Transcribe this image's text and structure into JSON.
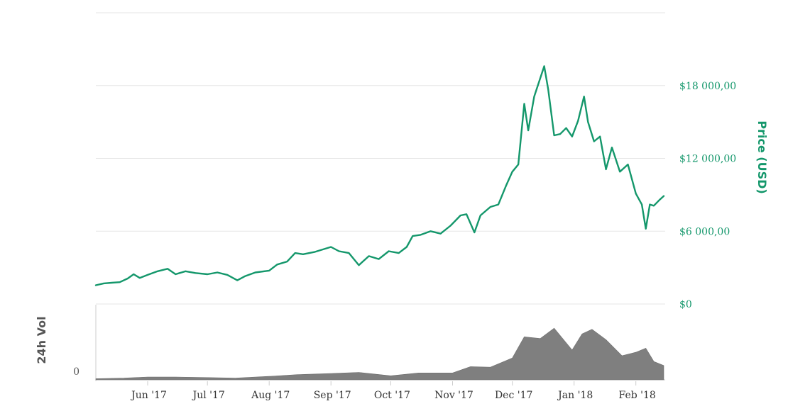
{
  "chart_data": [
    {
      "type": "line",
      "ylabel": "Price (USD)",
      "ylim": [
        0,
        24000
      ],
      "y_ticks": [
        "$0",
        "$6 000,00",
        "$12 000,00",
        "$18 000,00"
      ],
      "grid": true,
      "line_color": "#14976b",
      "series": [
        {
          "points": [
            [
              "2017-05-06",
              1550
            ],
            [
              "2017-05-10",
              1700
            ],
            [
              "2017-05-14",
              1750
            ],
            [
              "2017-05-18",
              1800
            ],
            [
              "2017-05-22",
              2100
            ],
            [
              "2017-05-25",
              2450
            ],
            [
              "2017-05-28",
              2150
            ],
            [
              "2017-06-01",
              2400
            ],
            [
              "2017-06-06",
              2700
            ],
            [
              "2017-06-11",
              2900
            ],
            [
              "2017-06-15",
              2450
            ],
            [
              "2017-06-20",
              2700
            ],
            [
              "2017-06-25",
              2550
            ],
            [
              "2017-07-01",
              2450
            ],
            [
              "2017-07-06",
              2600
            ],
            [
              "2017-07-11",
              2400
            ],
            [
              "2017-07-16",
              1950
            ],
            [
              "2017-07-20",
              2300
            ],
            [
              "2017-07-25",
              2600
            ],
            [
              "2017-08-01",
              2750
            ],
            [
              "2017-08-05",
              3250
            ],
            [
              "2017-08-10",
              3500
            ],
            [
              "2017-08-14",
              4200
            ],
            [
              "2017-08-18",
              4100
            ],
            [
              "2017-08-24",
              4300
            ],
            [
              "2017-09-01",
              4700
            ],
            [
              "2017-09-05",
              4350
            ],
            [
              "2017-09-10",
              4200
            ],
            [
              "2017-09-15",
              3200
            ],
            [
              "2017-09-20",
              3950
            ],
            [
              "2017-09-25",
              3700
            ],
            [
              "2017-09-30",
              4350
            ],
            [
              "2017-10-05",
              4200
            ],
            [
              "2017-10-09",
              4700
            ],
            [
              "2017-10-12",
              5600
            ],
            [
              "2017-10-16",
              5700
            ],
            [
              "2017-10-21",
              6000
            ],
            [
              "2017-10-26",
              5800
            ],
            [
              "2017-10-31",
              6450
            ],
            [
              "2017-11-05",
              7300
            ],
            [
              "2017-11-08",
              7400
            ],
            [
              "2017-11-12",
              5900
            ],
            [
              "2017-11-15",
              7300
            ],
            [
              "2017-11-20",
              8000
            ],
            [
              "2017-11-24",
              8200
            ],
            [
              "2017-11-28",
              9800
            ],
            [
              "2017-12-01",
              10900
            ],
            [
              "2017-12-04",
              11500
            ],
            [
              "2017-12-07",
              16500
            ],
            [
              "2017-12-09",
              14300
            ],
            [
              "2017-12-12",
              17100
            ],
            [
              "2017-12-17",
              19600
            ],
            [
              "2017-12-19",
              17700
            ],
            [
              "2017-12-22",
              13900
            ],
            [
              "2017-12-25",
              14000
            ],
            [
              "2017-12-28",
              14500
            ],
            [
              "2017-12-31",
              13800
            ],
            [
              "2018-01-03",
              15100
            ],
            [
              "2018-01-06",
              17100
            ],
            [
              "2018-01-08",
              15000
            ],
            [
              "2018-01-11",
              13400
            ],
            [
              "2018-01-14",
              13800
            ],
            [
              "2018-01-17",
              11100
            ],
            [
              "2018-01-20",
              12900
            ],
            [
              "2018-01-24",
              10900
            ],
            [
              "2018-01-28",
              11500
            ],
            [
              "2018-02-01",
              9100
            ],
            [
              "2018-02-04",
              8200
            ],
            [
              "2018-02-06",
              6200
            ],
            [
              "2018-02-08",
              8200
            ],
            [
              "2018-02-10",
              8100
            ],
            [
              "2018-02-13",
              8600
            ],
            [
              "2018-02-15",
              8900
            ]
          ]
        }
      ]
    },
    {
      "type": "area",
      "ylabel": "24h Vol",
      "y_ticks": [
        "0"
      ],
      "color": "#7f7f7f",
      "x_ticks": [
        "Jun '17",
        "Jul '17",
        "Aug '17",
        "Sep '17",
        "Oct '17",
        "Nov '17",
        "Dec '17",
        "Jan '18",
        "Feb '18"
      ],
      "series": [
        {
          "points": [
            [
              "2017-05-06",
              0.02
            ],
            [
              "2017-05-20",
              0.03
            ],
            [
              "2017-06-01",
              0.05
            ],
            [
              "2017-06-15",
              0.05
            ],
            [
              "2017-07-01",
              0.04
            ],
            [
              "2017-07-15",
              0.03
            ],
            [
              "2017-08-01",
              0.06
            ],
            [
              "2017-08-15",
              0.09
            ],
            [
              "2017-09-01",
              0.11
            ],
            [
              "2017-09-15",
              0.13
            ],
            [
              "2017-10-01",
              0.07
            ],
            [
              "2017-10-15",
              0.12
            ],
            [
              "2017-11-01",
              0.12
            ],
            [
              "2017-11-10",
              0.23
            ],
            [
              "2017-11-20",
              0.22
            ],
            [
              "2017-12-01",
              0.38
            ],
            [
              "2017-12-07",
              0.75
            ],
            [
              "2017-12-15",
              0.72
            ],
            [
              "2017-12-22",
              0.9
            ],
            [
              "2017-12-31",
              0.52
            ],
            [
              "2018-01-05",
              0.8
            ],
            [
              "2018-01-10",
              0.88
            ],
            [
              "2018-01-17",
              0.7
            ],
            [
              "2018-01-25",
              0.42
            ],
            [
              "2018-02-01",
              0.48
            ],
            [
              "2018-02-06",
              0.55
            ],
            [
              "2018-02-10",
              0.32
            ],
            [
              "2018-02-15",
              0.25
            ]
          ]
        }
      ]
    }
  ]
}
